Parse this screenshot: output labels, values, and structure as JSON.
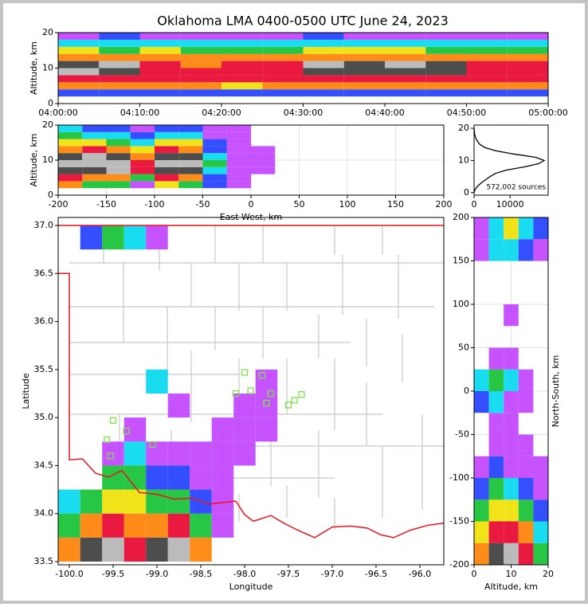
{
  "colormap": [
    "#c040ff",
    "#1e3cff",
    "#00d8f0",
    "#10c030",
    "#f0e000",
    "#ff8000",
    "#e8002a",
    "#3a3a3a",
    "#b4b4b4"
  ],
  "chart_data": [
    {
      "type": "heatmap",
      "title": "Oklahoma LMA 0400-0500 UTC June 24, 2023",
      "ylabel": "Altitude, km",
      "xlim": [
        0,
        60
      ],
      "ylim": [
        0,
        20
      ],
      "xticks": [
        {
          "value": 0,
          "label": "04:00:00"
        },
        {
          "value": 10,
          "label": "04:10:00"
        },
        {
          "value": 20,
          "label": "04:20:00"
        },
        {
          "value": 30,
          "label": "04:30:00"
        },
        {
          "value": 40,
          "label": "04:40:00"
        },
        {
          "value": 50,
          "label": "04:50:00"
        },
        {
          "value": 60,
          "label": "05:00:00"
        }
      ],
      "yticks": [
        0,
        10,
        20
      ],
      "grid": false,
      "density": {
        "x_edges": [
          0,
          5,
          10,
          15,
          20,
          25,
          30,
          35,
          40,
          45,
          50,
          55,
          60
        ],
        "y_edges": [
          2,
          4,
          6,
          8,
          10,
          12,
          14,
          16,
          18,
          20
        ],
        "values": [
          [
            2,
            2,
            2,
            2,
            2,
            2,
            2,
            2,
            2,
            2,
            2,
            2
          ],
          [
            6,
            6,
            6,
            6,
            5,
            6,
            6,
            6,
            6,
            6,
            6,
            6
          ],
          [
            7,
            7,
            7,
            7,
            7,
            7,
            7,
            7,
            7,
            7,
            7,
            7
          ],
          [
            9,
            8,
            7,
            7,
            7,
            7,
            8,
            8,
            8,
            8,
            7,
            7
          ],
          [
            8,
            9,
            7,
            6,
            7,
            7,
            9,
            8,
            9,
            8,
            7,
            7
          ],
          [
            6,
            6,
            6,
            6,
            6,
            6,
            6,
            6,
            6,
            6,
            6,
            6
          ],
          [
            5,
            4,
            5,
            4,
            4,
            4,
            5,
            5,
            5,
            4,
            4,
            4
          ],
          [
            3,
            3,
            3,
            3,
            3,
            3,
            3,
            3,
            3,
            3,
            3,
            3
          ],
          [
            1,
            2,
            1,
            1,
            1,
            1,
            2,
            1,
            1,
            1,
            1,
            1
          ]
        ]
      }
    },
    {
      "type": "heatmap",
      "xlabel": "East-West, km",
      "ylabel": "Altitude, km",
      "xlim": [
        -200,
        200
      ],
      "ylim": [
        0,
        20
      ],
      "xticks": [
        -200,
        -150,
        -100,
        -50,
        0,
        50,
        100,
        150,
        200
      ],
      "yticks": [
        0,
        10,
        20
      ],
      "grid": true,
      "density": {
        "x_edges": [
          -200,
          -175,
          -150,
          -125,
          -100,
          -75,
          -50,
          -25,
          0,
          25
        ],
        "y_edges": [
          2,
          4,
          6,
          8,
          10,
          12,
          14,
          16,
          18,
          20
        ],
        "values": [
          [
            6,
            4,
            4,
            1,
            5,
            4,
            2,
            1,
            0
          ],
          [
            7,
            6,
            6,
            4,
            7,
            6,
            2,
            1,
            0
          ],
          [
            8,
            8,
            9,
            7,
            8,
            8,
            3,
            1,
            1
          ],
          [
            9,
            9,
            9,
            7,
            9,
            9,
            4,
            1,
            1
          ],
          [
            8,
            9,
            8,
            6,
            8,
            8,
            3,
            1,
            1
          ],
          [
            6,
            7,
            6,
            5,
            7,
            6,
            2,
            1,
            1
          ],
          [
            5,
            5,
            4,
            3,
            5,
            5,
            2,
            1,
            0
          ],
          [
            4,
            3,
            3,
            2,
            3,
            3,
            1,
            1,
            0
          ],
          [
            3,
            2,
            2,
            1,
            2,
            2,
            1,
            1,
            0
          ]
        ]
      }
    },
    {
      "type": "line",
      "annotation": "572,002 sources",
      "color": "#000000",
      "xlim": [
        0,
        20600
      ],
      "ylim": [
        -0.8,
        21
      ],
      "xticks": [
        0,
        10000
      ],
      "yticks": [
        0,
        10,
        20
      ],
      "grid": false,
      "y": [
        0,
        1,
        2,
        3,
        4,
        5,
        6,
        7,
        8,
        9,
        10,
        11,
        12,
        13,
        14,
        15,
        16,
        17,
        18,
        19,
        20
      ],
      "values": [
        0,
        300,
        1000,
        2000,
        3200,
        4500,
        6000,
        9000,
        14000,
        18000,
        19500,
        17000,
        11000,
        6000,
        3000,
        1600,
        900,
        450,
        200,
        80,
        20
      ]
    },
    {
      "type": "map",
      "xlabel": "Longitude",
      "ylabel": "Latitude",
      "xlim": [
        -100.127,
        -95.727
      ],
      "ylim": [
        33.467,
        37.083
      ],
      "xticks": [
        {
          "value": -100,
          "label": "-100.0"
        },
        {
          "value": -99.5,
          "label": "-99.5"
        },
        {
          "value": -99,
          "label": "-99.0"
        },
        {
          "value": -98.5,
          "label": "-98.5"
        },
        {
          "value": -98,
          "label": "-98.0"
        },
        {
          "value": -97.5,
          "label": "-97.5"
        },
        {
          "value": -97,
          "label": "-97.0"
        },
        {
          "value": -96.5,
          "label": "-96.5"
        },
        {
          "value": -96,
          "label": "-96.0"
        }
      ],
      "yticks": [
        {
          "value": 33.5,
          "label": "33.5"
        },
        {
          "value": 34,
          "label": "34.0"
        },
        {
          "value": 34.5,
          "label": "34.5"
        },
        {
          "value": 35,
          "label": "35.0"
        },
        {
          "value": 35.5,
          "label": "35.5"
        },
        {
          "value": 36,
          "label": "36.0"
        },
        {
          "value": 36.5,
          "label": "36.5"
        },
        {
          "value": 37,
          "label": "37.0"
        }
      ],
      "grid": false,
      "density": {
        "x_edges": [
          -100.125,
          -99.875,
          -99.625,
          -99.375,
          -99.125,
          -98.875,
          -98.625,
          -98.375,
          -98.125,
          -97.875,
          -97.625
        ],
        "y_edges": [
          33.5,
          33.75,
          34,
          34.25,
          34.5,
          34.75,
          35,
          35.25,
          35.5,
          35.75,
          36,
          36.25,
          36.5,
          36.75,
          37
        ],
        "values": [
          [
            6,
            8,
            9,
            7,
            8,
            9,
            6,
            0,
            0,
            0
          ],
          [
            4,
            6,
            7,
            6,
            6,
            7,
            4,
            1,
            0,
            0
          ],
          [
            3,
            4,
            5,
            5,
            4,
            4,
            2,
            1,
            0,
            0
          ],
          [
            0,
            0,
            4,
            4,
            2,
            2,
            1,
            1,
            0,
            0
          ],
          [
            0,
            0,
            1,
            3,
            1,
            1,
            1,
            1,
            1,
            0
          ],
          [
            0,
            0,
            0,
            1,
            0,
            0,
            0,
            1,
            1,
            1
          ],
          [
            0,
            0,
            0,
            0,
            0,
            1,
            0,
            0,
            1,
            1
          ],
          [
            0,
            0,
            0,
            0,
            3,
            0,
            0,
            0,
            0,
            1
          ],
          [
            0,
            0,
            0,
            0,
            0,
            0,
            0,
            0,
            0,
            0
          ],
          [
            0,
            0,
            0,
            0,
            0,
            0,
            0,
            0,
            0,
            0
          ],
          [
            0,
            0,
            0,
            0,
            0,
            0,
            0,
            0,
            0,
            0
          ],
          [
            0,
            0,
            0,
            0,
            0,
            0,
            0,
            0,
            0,
            0
          ],
          [
            0,
            0,
            0,
            0,
            0,
            0,
            0,
            0,
            0,
            0
          ],
          [
            0,
            2,
            4,
            3,
            1,
            0,
            0,
            0,
            0,
            0
          ]
        ]
      },
      "border": {
        "color": "#e8141e",
        "x": [
          -100.13,
          -95.73,
          null,
          -100.13,
          -100.0,
          -100.0,
          -99.85,
          -99.7,
          -99.55,
          -99.4,
          -99.2,
          -99.0,
          -98.8,
          -98.6,
          -98.4,
          -98.1,
          -98.0,
          -97.9,
          -97.7,
          -97.55,
          -97.4,
          -97.2,
          -97.0,
          -96.8,
          -96.6,
          -96.45,
          -96.3,
          -96.1,
          -95.9,
          -95.73
        ],
        "y": [
          37.0,
          37.0,
          null,
          36.5,
          36.5,
          34.56,
          34.57,
          34.42,
          34.38,
          34.45,
          34.22,
          34.2,
          34.15,
          34.16,
          34.1,
          34.13,
          33.99,
          33.92,
          33.98,
          33.9,
          33.83,
          33.75,
          33.86,
          33.87,
          33.85,
          33.78,
          33.75,
          33.83,
          33.88,
          33.9
        ]
      },
      "stations": {
        "color": "#7ee04a",
        "x": [
          -98.0,
          -97.8,
          -97.93,
          -98.1,
          -97.7,
          -97.75,
          -97.5,
          -97.43,
          -97.35,
          -99.5,
          -99.35,
          -99.57,
          -99.05,
          -99.53
        ],
        "y": [
          35.47,
          35.44,
          35.28,
          35.25,
          35.25,
          35.15,
          35.13,
          35.18,
          35.24,
          34.97,
          34.86,
          34.77,
          34.72,
          34.6
        ]
      }
    },
    {
      "type": "heatmap",
      "xlabel": "Altitude, km",
      "ylabel": "North-South, km",
      "xlim": [
        0,
        20
      ],
      "ylim": [
        -200,
        200
      ],
      "xticks": [
        0,
        10,
        20
      ],
      "yticks": [
        -200,
        -150,
        -100,
        -50,
        0,
        50,
        100,
        150,
        200
      ],
      "grid": true,
      "density": {
        "x_edges": [
          0,
          4,
          8,
          12,
          16,
          20
        ],
        "y_edges": [
          -200,
          -175,
          -150,
          -125,
          -100,
          -75,
          -50,
          -25,
          0,
          25,
          50,
          75,
          100,
          125,
          150,
          175,
          200
        ],
        "values": [
          [
            6,
            8,
            9,
            7,
            4
          ],
          [
            5,
            7,
            7,
            6,
            3
          ],
          [
            4,
            5,
            5,
            4,
            2
          ],
          [
            2,
            4,
            3,
            2,
            1
          ],
          [
            1,
            2,
            1,
            1,
            1
          ],
          [
            0,
            1,
            1,
            1,
            0
          ],
          [
            0,
            1,
            1,
            0,
            0
          ],
          [
            2,
            3,
            1,
            1,
            0
          ],
          [
            3,
            4,
            3,
            1,
            0
          ],
          [
            0,
            1,
            1,
            0,
            0
          ],
          [
            0,
            0,
            0,
            0,
            0
          ],
          [
            0,
            0,
            1,
            0,
            0
          ],
          [
            0,
            0,
            0,
            0,
            0
          ],
          [
            0,
            0,
            0,
            0,
            0
          ],
          [
            1,
            3,
            3,
            2,
            1
          ],
          [
            1,
            3,
            5,
            3,
            2
          ]
        ]
      }
    }
  ]
}
